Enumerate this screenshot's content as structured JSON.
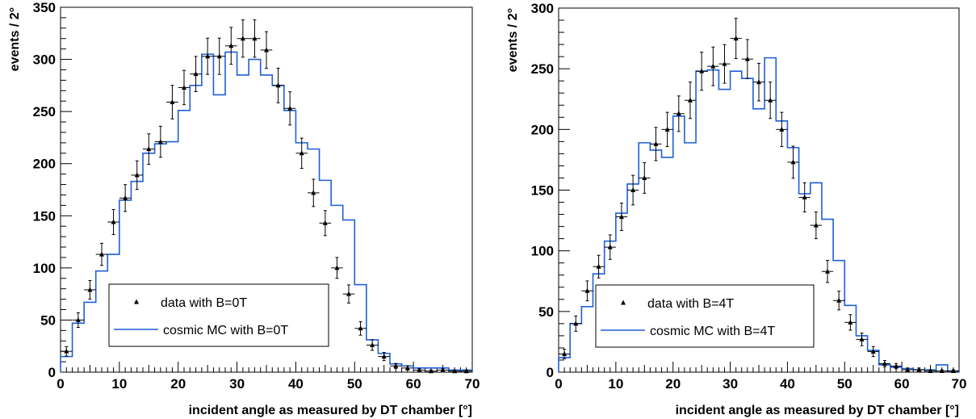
{
  "chart_data": [
    {
      "type": "histogram",
      "xlabel": "incident angle as measured by DT chamber [°]",
      "ylabel": "events / 2°",
      "xlim": [
        0,
        70
      ],
      "ylim": [
        0,
        350
      ],
      "xticks": [
        0,
        10,
        20,
        30,
        40,
        50,
        60,
        70
      ],
      "yticks": [
        0,
        50,
        100,
        150,
        200,
        250,
        300,
        350
      ],
      "grid": false,
      "legend_position": "bottom-left",
      "bin_width": 2,
      "x": [
        1,
        3,
        5,
        7,
        9,
        11,
        13,
        15,
        17,
        19,
        21,
        23,
        25,
        27,
        29,
        31,
        33,
        35,
        37,
        39,
        41,
        43,
        45,
        47,
        49,
        51,
        53,
        55,
        57,
        59,
        61,
        63,
        65,
        67,
        69
      ],
      "series": [
        {
          "name": "data with B=0T",
          "kind": "points-with-errors",
          "marker": "triangle",
          "values": [
            20,
            50,
            79,
            113,
            144,
            167,
            189,
            214,
            221,
            259,
            273,
            286,
            303,
            303,
            313,
            320,
            320,
            309,
            275,
            253,
            210,
            172,
            143,
            100,
            75,
            42,
            26,
            15,
            6,
            4,
            2,
            1,
            2,
            1,
            1
          ],
          "errors": [
            4.5,
            7,
            8.9,
            10.6,
            12,
            12.9,
            13.7,
            14.6,
            14.9,
            16.1,
            16.5,
            16.9,
            17.4,
            17.4,
            17.7,
            17.9,
            17.9,
            17.6,
            16.6,
            15.9,
            14.5,
            13.1,
            12,
            10,
            8.7,
            6.5,
            5.1,
            3.9,
            2.4,
            2,
            1.4,
            1,
            1.4,
            1,
            1
          ]
        },
        {
          "name": "cosmic MC with B=0T",
          "kind": "step",
          "color": "#1f5fd6",
          "values": [
            15,
            47,
            67,
            97,
            113,
            165,
            183,
            210,
            219,
            221,
            251,
            275,
            305,
            266,
            307,
            285,
            300,
            285,
            275,
            251,
            220,
            214,
            184,
            160,
            146,
            84,
            31,
            18,
            8,
            6,
            4,
            4,
            4,
            2,
            2
          ]
        }
      ]
    },
    {
      "type": "histogram",
      "xlabel": "incident angle as measured by DT chamber [°]",
      "ylabel": "events / 2°",
      "xlim": [
        0,
        70
      ],
      "ylim": [
        0,
        300
      ],
      "xticks": [
        0,
        10,
        20,
        30,
        40,
        50,
        60,
        70
      ],
      "yticks": [
        0,
        50,
        100,
        150,
        200,
        250,
        300
      ],
      "grid": false,
      "legend_position": "bottom-left",
      "bin_width": 2,
      "x": [
        1,
        3,
        5,
        7,
        9,
        11,
        13,
        15,
        17,
        19,
        21,
        23,
        25,
        27,
        29,
        31,
        33,
        35,
        37,
        39,
        41,
        43,
        45,
        47,
        49,
        51,
        53,
        55,
        57,
        59,
        61,
        63,
        65,
        67,
        69
      ],
      "series": [
        {
          "name": "data with B=4T",
          "kind": "points-with-errors",
          "marker": "triangle",
          "values": [
            15,
            40,
            67,
            87,
            103,
            128,
            150,
            160,
            188,
            200,
            213,
            224,
            248,
            252,
            254,
            275,
            258,
            239,
            224,
            200,
            173,
            144,
            121,
            83,
            59,
            41,
            27,
            17,
            7,
            5,
            2,
            2,
            1,
            1,
            1
          ],
          "errors": [
            3.9,
            6.3,
            8.2,
            9.3,
            10.1,
            11.3,
            12.2,
            12.6,
            13.7,
            14.1,
            14.6,
            15,
            15.7,
            15.9,
            15.9,
            16.6,
            16.1,
            15.5,
            15,
            14.1,
            13.2,
            12,
            11,
            9.1,
            7.7,
            6.4,
            5.2,
            4.1,
            2.6,
            2.2,
            1.4,
            1.4,
            1,
            1,
            1
          ]
        },
        {
          "name": "cosmic MC with B=4T",
          "kind": "step",
          "color": "#1f5fd6",
          "values": [
            12,
            40,
            54,
            81,
            108,
            131,
            155,
            189,
            183,
            177,
            211,
            189,
            248,
            249,
            233,
            248,
            242,
            217,
            259,
            207,
            185,
            147,
            156,
            126,
            92,
            55,
            30,
            18,
            6,
            4,
            3,
            2,
            2,
            6,
            1
          ]
        }
      ]
    }
  ]
}
